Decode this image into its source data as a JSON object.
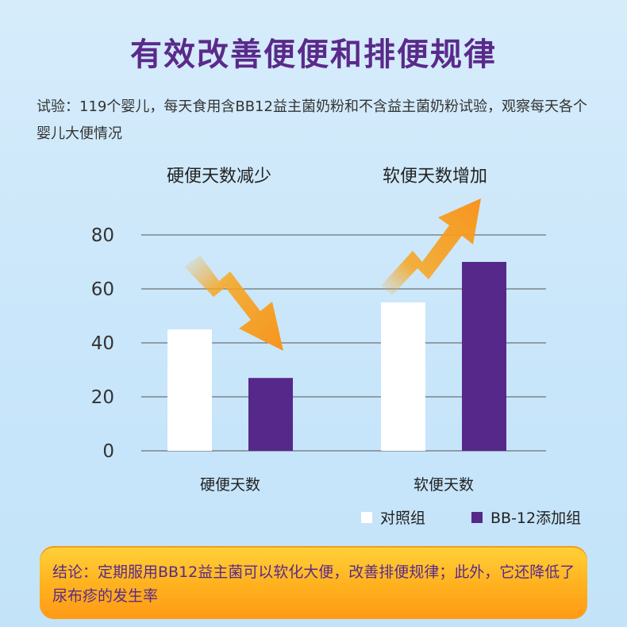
{
  "title": "有效改善便便和排便规律",
  "description": "试验：119个婴儿，每天食用含BB12益主菌奶粉和不含益主菌奶粉试验，观察每天各个婴儿大便情况",
  "trend_labels": {
    "left": "硬便天数减少",
    "right": "软便天数增加"
  },
  "conclusion": "结论：定期服用BB12益主菌可以软化大便，改善排便规律；此外，它还降低了尿布疹的发生率",
  "colors": {
    "control": "#ffffff",
    "bb12": "#55288a",
    "arrow": "#f8a51c",
    "title": "#5a2a8a"
  },
  "chart_data": {
    "type": "bar",
    "categories": [
      "硬便天数",
      "软便天数"
    ],
    "series": [
      {
        "name": "对照组",
        "values": [
          45,
          55
        ]
      },
      {
        "name": "BB-12添加组",
        "values": [
          27,
          70
        ]
      }
    ],
    "yticks": [
      0,
      20,
      40,
      60,
      80
    ],
    "ylim": [
      0,
      80
    ],
    "grid": true,
    "legend_position": "bottom-right"
  }
}
